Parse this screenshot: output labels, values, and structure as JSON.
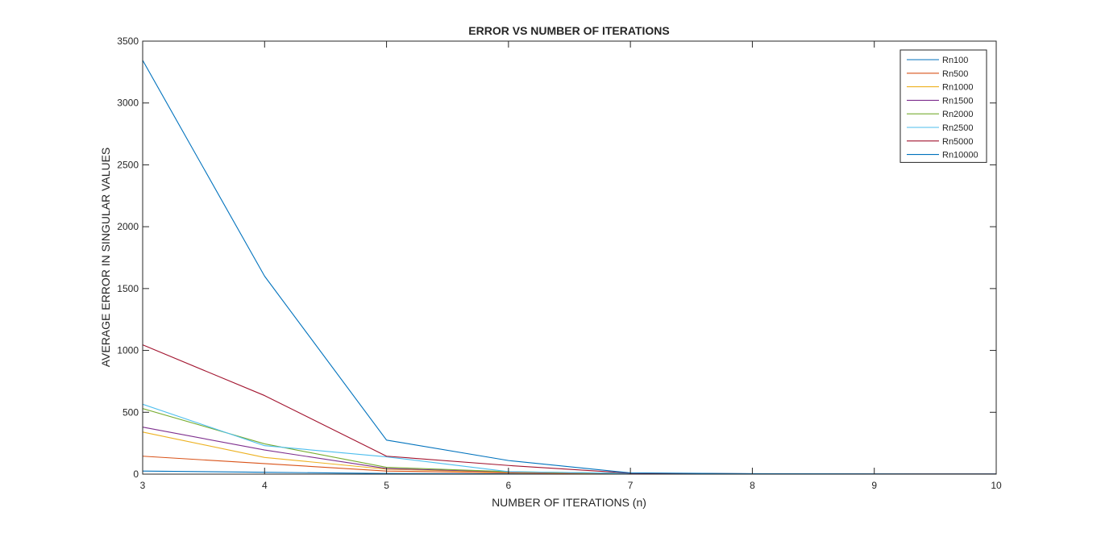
{
  "chart_data": {
    "type": "line",
    "title": "ERROR VS NUMBER OF ITERATIONS",
    "xlabel": "NUMBER OF ITERATIONS (n)",
    "ylabel": "AVERAGE ERROR IN SINGULAR VALUES",
    "xlim": [
      3,
      10
    ],
    "ylim": [
      0,
      3500
    ],
    "xticks": [
      3,
      4,
      5,
      6,
      7,
      8,
      9,
      10
    ],
    "yticks": [
      0,
      500,
      1000,
      1500,
      2000,
      2500,
      3000,
      3500
    ],
    "grid": false,
    "legend_position": "top-right",
    "x": [
      3,
      4,
      5,
      6,
      7,
      8,
      9,
      10
    ],
    "series": [
      {
        "name": "Rn100",
        "color": "#0072BD",
        "values": [
          25,
          15,
          5,
          2,
          1,
          0.5,
          0.3,
          0.2
        ]
      },
      {
        "name": "Rn500",
        "color": "#D95319",
        "values": [
          145,
          85,
          25,
          10,
          3,
          1,
          0.5,
          0.3
        ]
      },
      {
        "name": "Rn1000",
        "color": "#EDB120",
        "values": [
          340,
          135,
          40,
          15,
          4,
          1.5,
          0.8,
          0.5
        ]
      },
      {
        "name": "Rn1500",
        "color": "#7E2F8E",
        "values": [
          380,
          195,
          45,
          18,
          5,
          2,
          1,
          0.5
        ]
      },
      {
        "name": "Rn2000",
        "color": "#77AC30",
        "values": [
          530,
          245,
          55,
          20,
          6,
          2,
          1,
          0.5
        ]
      },
      {
        "name": "Rn2500",
        "color": "#4DBEEE",
        "values": [
          565,
          230,
          140,
          20,
          6,
          2,
          1,
          0.5
        ]
      },
      {
        "name": "Rn5000",
        "color": "#A2142F",
        "values": [
          1045,
          635,
          145,
          70,
          8,
          3,
          1.5,
          1
        ]
      },
      {
        "name": "Rn10000",
        "color": "#0072BD",
        "values": [
          3345,
          1600,
          275,
          110,
          10,
          4,
          2,
          1
        ]
      }
    ]
  }
}
